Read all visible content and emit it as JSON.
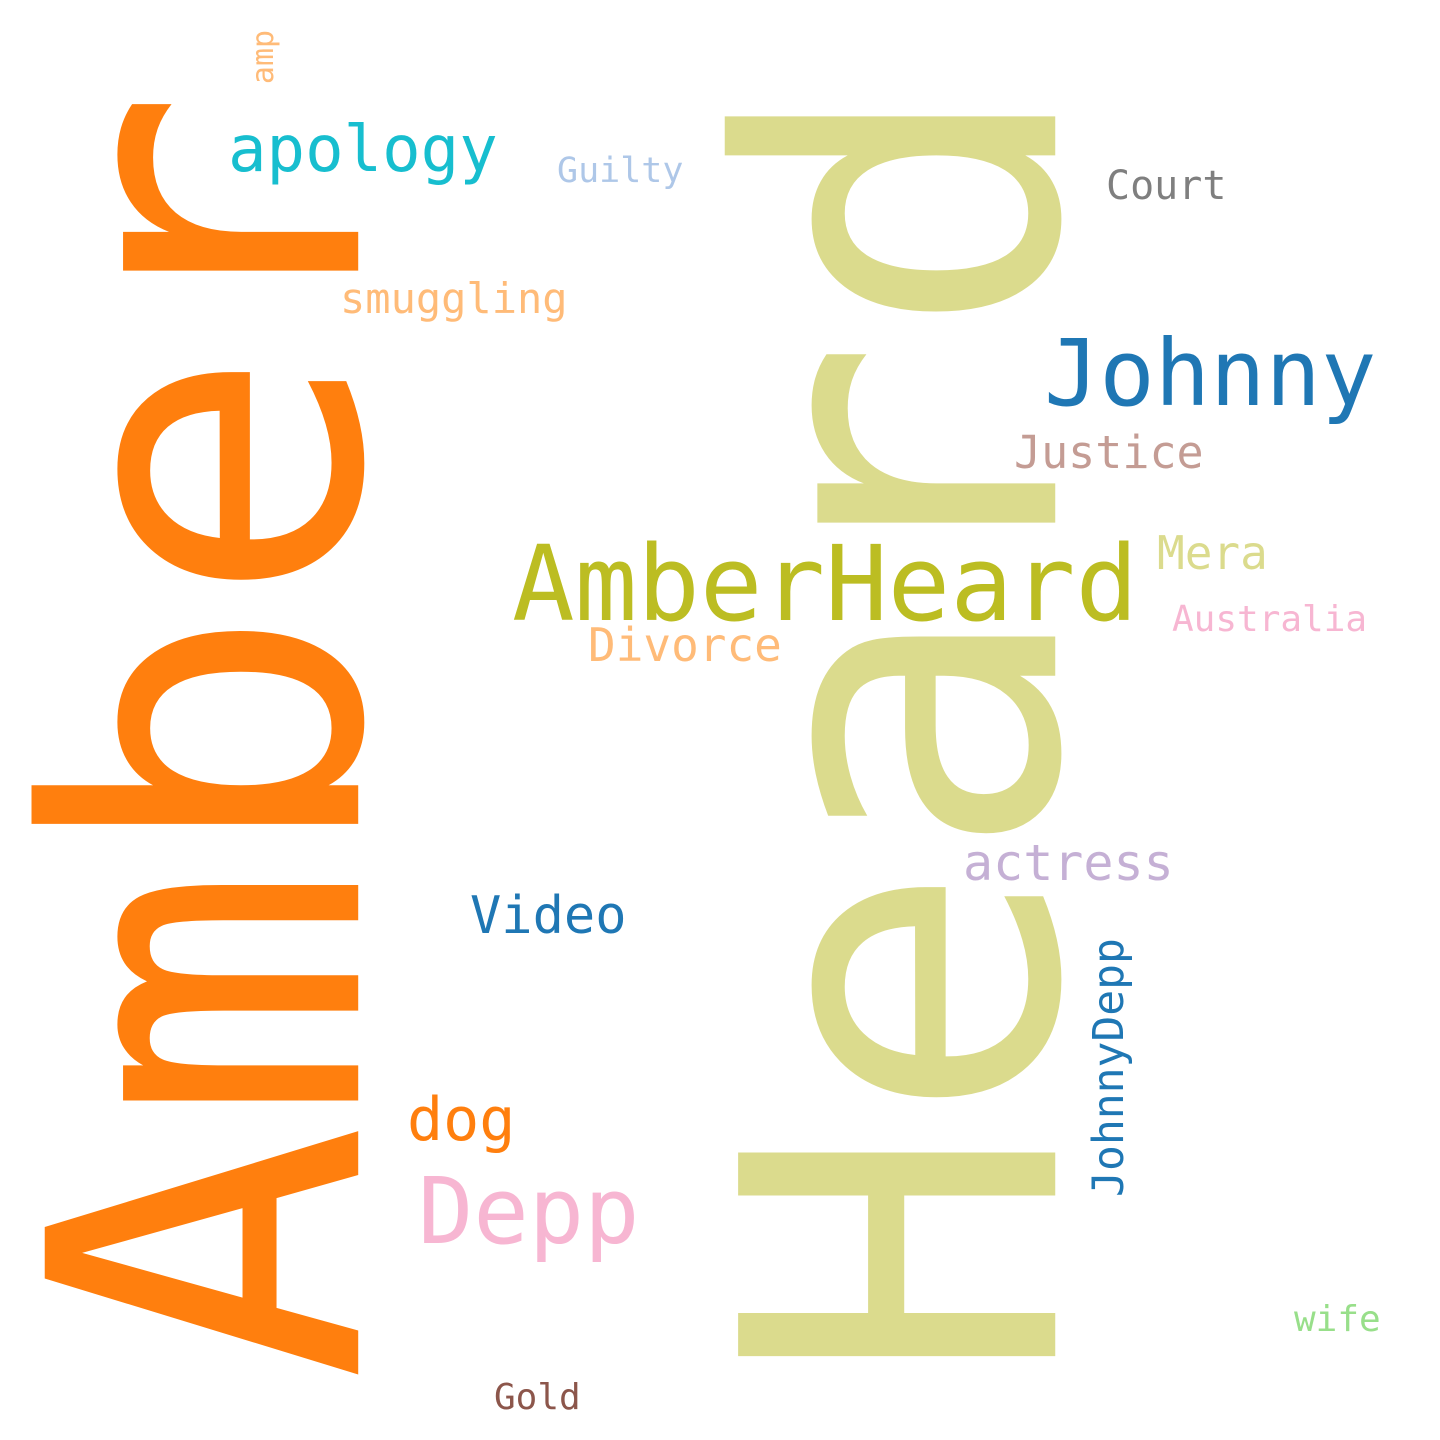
{
  "cloud": {
    "words": {
      "amber": {
        "text": "Amber",
        "color": "#ff7f0e",
        "orientation": "vertical"
      },
      "heard": {
        "text": "Heard",
        "color": "#dbdb8d",
        "orientation": "vertical"
      },
      "amp": {
        "text": "amp",
        "color": "#ffbb78",
        "orientation": "vertical"
      },
      "johnnydepp": {
        "text": "JohnnyDepp",
        "color": "#1f77b4",
        "orientation": "vertical"
      },
      "apology": {
        "text": "apology",
        "color": "#17becf",
        "orientation": "horizontal"
      },
      "guilty": {
        "text": "Guilty",
        "color": "#aec7e8",
        "orientation": "horizontal"
      },
      "court": {
        "text": "Court",
        "color": "#7f7f7f",
        "orientation": "horizontal"
      },
      "smuggling": {
        "text": "smuggling",
        "color": "#ffbb78",
        "orientation": "horizontal"
      },
      "johnny": {
        "text": "Johnny",
        "color": "#1f77b4",
        "orientation": "horizontal"
      },
      "justice": {
        "text": "Justice",
        "color": "#c49c94",
        "orientation": "horizontal"
      },
      "amberheard": {
        "text": "AmberHeard",
        "color": "#bcbd22",
        "orientation": "horizontal"
      },
      "mera": {
        "text": "Mera",
        "color": "#dbdb8d",
        "orientation": "horizontal"
      },
      "australia": {
        "text": "Australia",
        "color": "#f7b6d2",
        "orientation": "horizontal"
      },
      "divorce": {
        "text": "Divorce",
        "color": "#ffbb78",
        "orientation": "horizontal"
      },
      "actress": {
        "text": "actress",
        "color": "#c5b0d5",
        "orientation": "horizontal"
      },
      "video": {
        "text": "Video",
        "color": "#1f77b4",
        "orientation": "horizontal"
      },
      "dog": {
        "text": "dog",
        "color": "#ff7f0e",
        "orientation": "horizontal"
      },
      "depp": {
        "text": "Depp",
        "color": "#f7b6d2",
        "orientation": "horizontal"
      },
      "wife": {
        "text": "wife",
        "color": "#98df8a",
        "orientation": "horizontal"
      },
      "gold": {
        "text": "Gold",
        "color": "#8c564b",
        "orientation": "horizontal"
      }
    }
  }
}
